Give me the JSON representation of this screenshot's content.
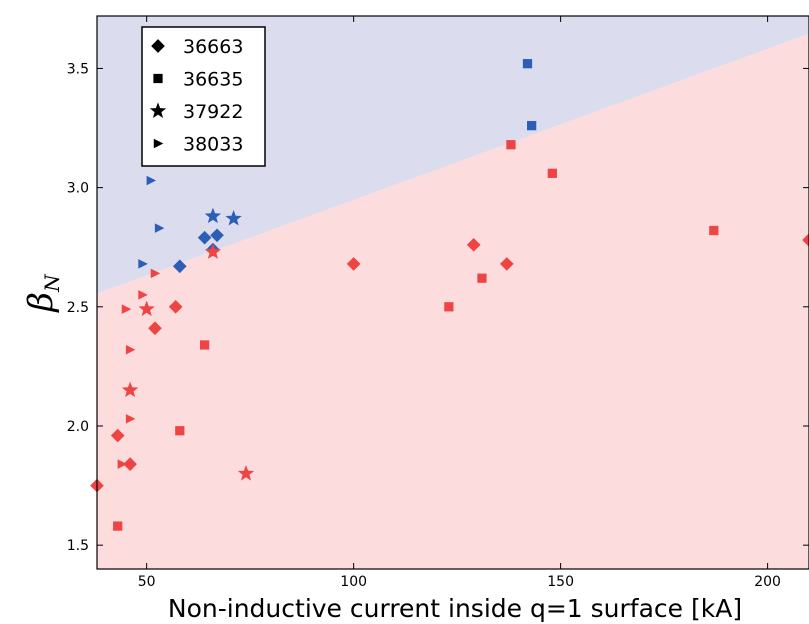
{
  "chart_data": {
    "type": "scatter",
    "xlabel": "Non-inductive current inside q=1 surface [kA]",
    "ylabel": "β",
    "ylabel_subscript": "N",
    "xlim": [
      38,
      210
    ],
    "ylim": [
      1.4,
      3.72
    ],
    "xticks": [
      50,
      100,
      150,
      200
    ],
    "yticks": [
      1.5,
      2.0,
      2.5,
      3.0,
      3.5
    ],
    "xtick_labels": [
      "50",
      "100",
      "150",
      "200"
    ],
    "ytick_labels": [
      "1.5",
      "2.0",
      "2.5",
      "3.0",
      "3.5"
    ],
    "grid": false,
    "legend_position": "top-left",
    "boundary_line": {
      "x": [
        38,
        210
      ],
      "y": [
        2.555,
        3.645
      ]
    },
    "region_colors": {
      "above": "#dcdcef",
      "below": "#fcdcdc"
    },
    "point_colors": {
      "above": "#2a5fb5",
      "below": "#ee4444"
    },
    "legend": [
      {
        "label": "36663",
        "marker": "diamond"
      },
      {
        "label": "36635",
        "marker": "square"
      },
      {
        "label": "37922",
        "marker": "star"
      },
      {
        "label": "38033",
        "marker": "triangle-right"
      }
    ],
    "series": [
      {
        "name": "36663",
        "marker": "diamond",
        "points": [
          {
            "x": 64,
            "y": 2.79,
            "region": "above"
          },
          {
            "x": 67,
            "y": 2.8,
            "region": "above"
          },
          {
            "x": 66,
            "y": 2.74,
            "region": "above"
          },
          {
            "x": 58,
            "y": 2.67,
            "region": "above"
          },
          {
            "x": 100,
            "y": 2.68,
            "region": "below"
          },
          {
            "x": 129,
            "y": 2.76,
            "region": "below"
          },
          {
            "x": 137,
            "y": 2.68,
            "region": "below"
          },
          {
            "x": 210,
            "y": 2.78,
            "region": "below"
          },
          {
            "x": 57,
            "y": 2.5,
            "region": "below"
          },
          {
            "x": 52,
            "y": 2.41,
            "region": "below"
          },
          {
            "x": 43,
            "y": 1.96,
            "region": "below"
          },
          {
            "x": 46,
            "y": 1.84,
            "region": "below"
          },
          {
            "x": 38,
            "y": 1.75,
            "region": "below"
          }
        ]
      },
      {
        "name": "36635",
        "marker": "square",
        "points": [
          {
            "x": 142,
            "y": 3.52,
            "region": "above"
          },
          {
            "x": 143,
            "y": 3.26,
            "region": "above"
          },
          {
            "x": 138,
            "y": 3.18,
            "region": "below"
          },
          {
            "x": 148,
            "y": 3.06,
            "region": "below"
          },
          {
            "x": 187,
            "y": 2.82,
            "region": "below"
          },
          {
            "x": 131,
            "y": 2.62,
            "region": "below"
          },
          {
            "x": 123,
            "y": 2.5,
            "region": "below"
          },
          {
            "x": 64,
            "y": 2.34,
            "region": "below"
          },
          {
            "x": 58,
            "y": 1.98,
            "region": "below"
          },
          {
            "x": 43,
            "y": 1.58,
            "region": "below"
          }
        ]
      },
      {
        "name": "37922",
        "marker": "star",
        "points": [
          {
            "x": 66,
            "y": 2.88,
            "region": "above"
          },
          {
            "x": 71,
            "y": 2.87,
            "region": "above"
          },
          {
            "x": 66,
            "y": 2.73,
            "region": "below"
          },
          {
            "x": 50,
            "y": 2.49,
            "region": "below"
          },
          {
            "x": 46,
            "y": 2.15,
            "region": "below"
          },
          {
            "x": 74,
            "y": 1.8,
            "region": "below"
          }
        ]
      },
      {
        "name": "38033",
        "marker": "triangle-right",
        "points": [
          {
            "x": 51,
            "y": 3.03,
            "region": "above"
          },
          {
            "x": 53,
            "y": 2.83,
            "region": "above"
          },
          {
            "x": 49,
            "y": 2.68,
            "region": "above"
          },
          {
            "x": 52,
            "y": 2.64,
            "region": "below"
          },
          {
            "x": 49,
            "y": 2.55,
            "region": "below"
          },
          {
            "x": 45,
            "y": 2.49,
            "region": "below"
          },
          {
            "x": 46,
            "y": 2.32,
            "region": "below"
          },
          {
            "x": 46,
            "y": 2.03,
            "region": "below"
          },
          {
            "x": 44,
            "y": 1.84,
            "region": "below"
          }
        ]
      }
    ]
  }
}
